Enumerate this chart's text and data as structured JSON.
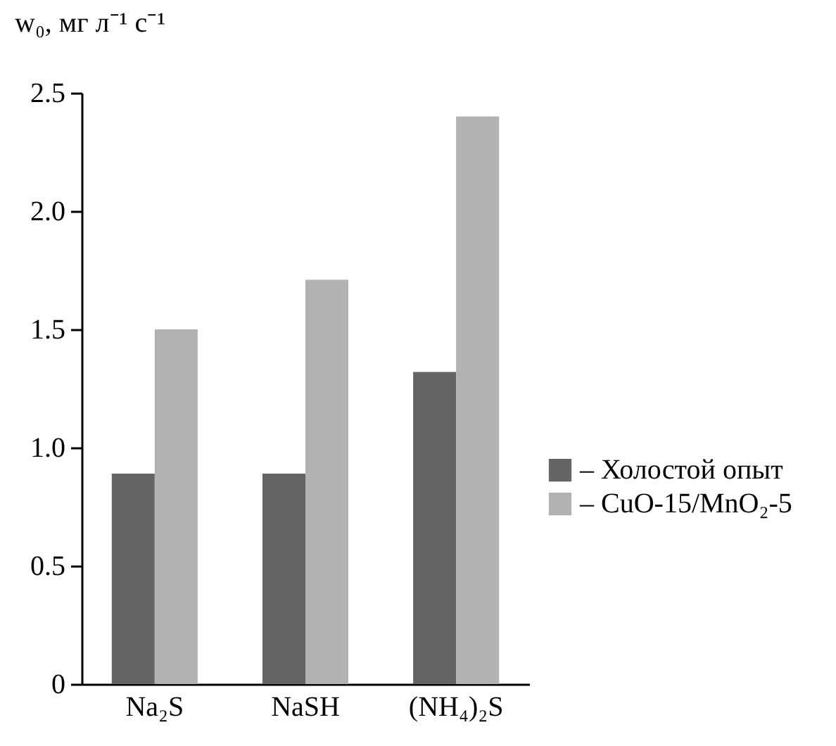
{
  "chart_data": {
    "type": "bar",
    "ylabel": "w₀, мг л⁻¹ с⁻¹",
    "categories": [
      "Na₂S",
      "NaSH",
      "(NH₄)₂S"
    ],
    "series": [
      {
        "name": "– Холостой опыт",
        "color": "#646464",
        "values": [
          0.89,
          0.89,
          1.32
        ]
      },
      {
        "name": "– CuO-15/MnO₂-5",
        "color": "#b2b2b2",
        "values": [
          1.5,
          1.71,
          2.4
        ]
      }
    ],
    "ylim": [
      0,
      2.5
    ],
    "yticks": [
      {
        "value": 0,
        "label": "0"
      },
      {
        "value": 0.5,
        "label": "0.5"
      },
      {
        "value": 1,
        "label": "1.0"
      },
      {
        "value": 1.5,
        "label": "1.5"
      },
      {
        "value": 2,
        "label": "2.0"
      },
      {
        "value": 2.5,
        "label": "2.5"
      }
    ],
    "grid": false,
    "legend": "right"
  }
}
